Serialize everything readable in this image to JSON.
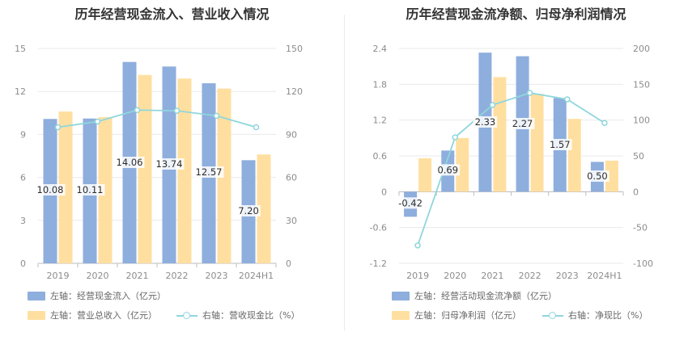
{
  "colors": {
    "blue": "#8eaedd",
    "orange": "#ffdfa0",
    "line": "#8fd6dc",
    "grid": "#e9e9e9"
  },
  "chart_data": [
    {
      "type": "bar",
      "title": "历年经营现金流入、营业收入情况",
      "categories": [
        "2019",
        "2020",
        "2021",
        "2022",
        "2023",
        "2024H1"
      ],
      "left_axis": {
        "ticks": [
          "0",
          "3",
          "6",
          "9",
          "12",
          "15"
        ],
        "range": [
          0,
          15
        ]
      },
      "right_axis": {
        "ticks": [
          "0",
          "30",
          "60",
          "90",
          "120",
          "150"
        ],
        "range": [
          0,
          150
        ]
      },
      "series": [
        {
          "name": "左轴：经营现金流入（亿元）",
          "axis": "left",
          "kind": "bar",
          "color": "#8eaedd",
          "values": [
            10.08,
            10.11,
            14.06,
            13.74,
            12.57,
            7.2
          ],
          "labels": [
            "10.08",
            "10.11",
            "14.06",
            "13.74",
            "12.57",
            "7.20"
          ]
        },
        {
          "name": "左轴：营业总收入（亿元）",
          "axis": "left",
          "kind": "bar",
          "color": "#ffdfa0",
          "values": [
            10.6,
            10.2,
            13.15,
            12.9,
            12.2,
            7.6
          ]
        },
        {
          "name": "右轴：营收现金比（%）",
          "axis": "right",
          "kind": "line",
          "color": "#8fd6dc",
          "values": [
            95,
            99,
            107,
            106.5,
            103,
            95
          ]
        }
      ]
    },
    {
      "type": "bar",
      "title": "历年经营现金流净额、归母净利润情况",
      "categories": [
        "2019",
        "2020",
        "2021",
        "2022",
        "2023",
        "2024H1"
      ],
      "left_axis": {
        "ticks": [
          "-1.2",
          "-0.6",
          "0",
          "0.6",
          "1.2",
          "1.8",
          "2.4"
        ],
        "range": [
          -1.2,
          2.4
        ]
      },
      "right_axis": {
        "ticks": [
          "-100",
          "-50",
          "0",
          "50",
          "100",
          "150",
          "200"
        ],
        "range": [
          -100,
          200
        ]
      },
      "series": [
        {
          "name": "左轴：经营活动现金流净额（亿元）",
          "axis": "left",
          "kind": "bar",
          "color": "#8eaedd",
          "values": [
            -0.42,
            0.69,
            2.33,
            2.27,
            1.57,
            0.5
          ],
          "labels": [
            "-0.42",
            "0.69",
            "2.33",
            "2.27",
            "1.57",
            "0.50"
          ]
        },
        {
          "name": "左轴：归母净利润（亿元）",
          "axis": "left",
          "kind": "bar",
          "color": "#ffdfa0",
          "values": [
            0.56,
            0.9,
            1.92,
            1.64,
            1.22,
            0.52
          ]
        },
        {
          "name": "右轴：净现比（%）",
          "axis": "right",
          "kind": "line",
          "color": "#8fd6dc",
          "values": [
            -75,
            76,
            121,
            138,
            129,
            96
          ]
        }
      ]
    }
  ]
}
